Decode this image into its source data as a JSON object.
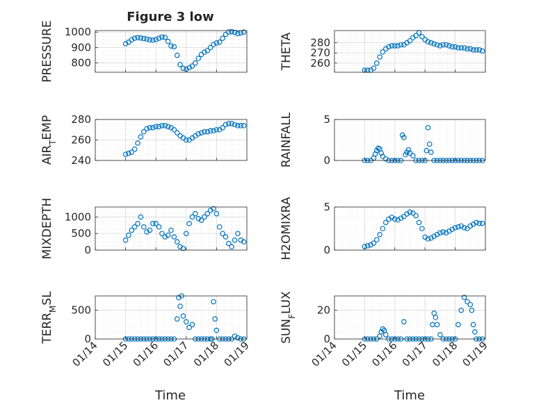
{
  "figure": {
    "title": "Figure 3 low",
    "xlabel": "Time"
  },
  "style": {
    "marker_color": "#0072BD",
    "axes_color": "#262626",
    "grid_color": "#d9d9d9"
  },
  "chart_data": [
    {
      "type": "scatter",
      "ylabel": "PRESSURE",
      "ylim": [
        740,
        1010
      ],
      "yticks": [
        800,
        900,
        1000
      ],
      "xticks": [
        "01/14",
        "01/15",
        "01/16",
        "01/17",
        "01/18",
        "01/19"
      ],
      "x": [
        15.0,
        15.1,
        15.2,
        15.3,
        15.4,
        15.5,
        15.6,
        15.7,
        15.8,
        15.9,
        16.0,
        16.1,
        16.2,
        16.3,
        16.4,
        16.5,
        16.6,
        16.7,
        16.8,
        16.9,
        17.0,
        17.1,
        17.2,
        17.3,
        17.4,
        17.5,
        17.6,
        17.7,
        17.8,
        17.9,
        18.0,
        18.1,
        18.2,
        18.3,
        18.4,
        18.5,
        18.6,
        18.7,
        18.8,
        18.9
      ],
      "y": [
        925,
        935,
        950,
        960,
        965,
        962,
        958,
        955,
        950,
        948,
        952,
        960,
        968,
        966,
        940,
        910,
        905,
        850,
        790,
        765,
        760,
        770,
        780,
        800,
        830,
        855,
        870,
        880,
        900,
        920,
        930,
        935,
        960,
        985,
        1000,
        1003,
        998,
        990,
        995,
        1000
      ]
    },
    {
      "type": "scatter",
      "ylabel": "THETA",
      "ylim": [
        251,
        292
      ],
      "yticks": [
        260,
        270,
        280
      ],
      "xticks": [
        "01/14",
        "01/15",
        "01/16",
        "01/17",
        "01/18",
        "01/19"
      ],
      "x": [
        15.0,
        15.1,
        15.2,
        15.3,
        15.4,
        15.5,
        15.6,
        15.7,
        15.8,
        15.9,
        16.0,
        16.1,
        16.2,
        16.3,
        16.4,
        16.5,
        16.6,
        16.7,
        16.8,
        16.9,
        17.0,
        17.1,
        17.2,
        17.3,
        17.4,
        17.5,
        17.6,
        17.7,
        17.8,
        17.9,
        18.0,
        18.1,
        18.2,
        18.3,
        18.4,
        18.5,
        18.6,
        18.7,
        18.8,
        18.9
      ],
      "y": [
        253,
        253,
        253,
        255,
        260,
        266,
        271,
        274,
        276,
        277,
        277,
        277,
        278,
        278,
        280,
        282,
        285,
        287,
        290,
        286,
        283,
        281,
        280,
        279,
        278,
        277,
        278,
        278,
        277,
        276,
        276,
        275,
        275,
        275,
        274,
        274,
        273,
        273,
        273,
        272
      ]
    },
    {
      "type": "scatter",
      "ylabel": "AIR_TEMP",
      "ylim": [
        240,
        280
      ],
      "yticks": [
        240,
        260,
        280
      ],
      "xticks": [
        "01/14",
        "01/15",
        "01/16",
        "01/17",
        "01/18",
        "01/19"
      ],
      "x": [
        15.0,
        15.1,
        15.2,
        15.3,
        15.4,
        15.5,
        15.6,
        15.7,
        15.8,
        15.9,
        16.0,
        16.1,
        16.2,
        16.3,
        16.4,
        16.5,
        16.6,
        16.7,
        16.8,
        16.9,
        17.0,
        17.1,
        17.2,
        17.3,
        17.4,
        17.5,
        17.6,
        17.7,
        17.8,
        17.9,
        18.0,
        18.1,
        18.2,
        18.3,
        18.4,
        18.5,
        18.6,
        18.7,
        18.8,
        18.9
      ],
      "y": [
        246,
        247,
        248,
        251,
        257,
        263,
        268,
        271,
        272,
        272,
        273,
        273,
        274,
        274,
        273,
        272,
        270,
        267,
        264,
        262,
        260,
        260,
        262,
        264,
        266,
        267,
        268,
        268,
        269,
        269,
        270,
        270,
        272,
        275,
        276,
        276,
        275,
        274,
        274,
        274
      ]
    },
    {
      "type": "scatter",
      "ylabel": "RAINFALL",
      "ylim": [
        0,
        5
      ],
      "yticks": [
        0,
        5
      ],
      "xticks": [
        "01/14",
        "01/15",
        "01/16",
        "01/17",
        "01/18",
        "01/19"
      ],
      "x": [
        15.0,
        15.1,
        15.2,
        15.3,
        15.35,
        15.4,
        15.45,
        15.5,
        15.55,
        15.6,
        15.7,
        15.8,
        15.9,
        16.0,
        16.1,
        16.2,
        16.25,
        16.3,
        16.35,
        16.4,
        16.45,
        16.5,
        16.6,
        16.7,
        16.8,
        16.9,
        17.0,
        17.05,
        17.1,
        17.15,
        17.2,
        17.3,
        17.4,
        17.5,
        17.6,
        17.7,
        17.8,
        17.9,
        18.0,
        18.1,
        18.2,
        18.3,
        18.4,
        18.5,
        18.6,
        18.7,
        18.8,
        18.9
      ],
      "y": [
        0,
        0,
        0,
        0.3,
        0.8,
        1.2,
        1.5,
        1.4,
        0.9,
        0.5,
        0.2,
        0,
        0,
        0,
        0,
        0,
        3.1,
        2.8,
        0.7,
        1.0,
        1.3,
        0.9,
        0.6,
        0,
        0,
        0,
        0,
        1.2,
        4.0,
        2.0,
        1.0,
        0,
        0,
        0,
        0,
        0,
        0,
        0,
        0,
        0,
        0,
        0,
        0,
        0,
        0,
        0,
        0,
        0
      ]
    },
    {
      "type": "scatter",
      "ylabel": "MIXDEPTH",
      "ylim": [
        0,
        1300
      ],
      "yticks": [
        0,
        500,
        1000
      ],
      "xticks": [
        "01/14",
        "01/15",
        "01/16",
        "01/17",
        "01/18",
        "01/19"
      ],
      "x": [
        15.0,
        15.1,
        15.2,
        15.3,
        15.4,
        15.5,
        15.6,
        15.7,
        15.8,
        15.9,
        16.0,
        16.1,
        16.2,
        16.3,
        16.4,
        16.5,
        16.6,
        16.7,
        16.8,
        16.9,
        17.0,
        17.1,
        17.2,
        17.3,
        17.4,
        17.5,
        17.6,
        17.7,
        17.8,
        17.9,
        18.0,
        18.1,
        18.2,
        18.3,
        18.4,
        18.5,
        18.6,
        18.7,
        18.8,
        18.9
      ],
      "y": [
        300,
        450,
        600,
        700,
        800,
        1000,
        700,
        550,
        600,
        800,
        800,
        700,
        500,
        400,
        450,
        600,
        400,
        250,
        100,
        50,
        500,
        800,
        1000,
        1100,
        950,
        900,
        1000,
        1100,
        1200,
        1250,
        1100,
        700,
        500,
        400,
        200,
        100,
        300,
        500,
        300,
        250
      ]
    },
    {
      "type": "scatter",
      "ylabel": "H2OMIXRA",
      "ylim": [
        0,
        5
      ],
      "yticks": [
        0,
        5
      ],
      "xticks": [
        "01/14",
        "01/15",
        "01/16",
        "01/17",
        "01/18",
        "01/19"
      ],
      "x": [
        15.0,
        15.1,
        15.2,
        15.3,
        15.4,
        15.5,
        15.6,
        15.7,
        15.8,
        15.9,
        16.0,
        16.1,
        16.2,
        16.3,
        16.4,
        16.5,
        16.6,
        16.7,
        16.8,
        16.9,
        17.0,
        17.1,
        17.2,
        17.3,
        17.4,
        17.5,
        17.6,
        17.7,
        17.8,
        17.9,
        18.0,
        18.1,
        18.2,
        18.3,
        18.4,
        18.5,
        18.6,
        18.7,
        18.8,
        18.9
      ],
      "y": [
        0.4,
        0.5,
        0.6,
        0.8,
        1.2,
        1.8,
        2.5,
        3.2,
        3.6,
        3.8,
        3.6,
        3.5,
        3.7,
        3.9,
        4.2,
        4.4,
        4.3,
        4.0,
        3.2,
        2.5,
        1.5,
        1.3,
        1.4,
        1.6,
        1.8,
        2.0,
        2.1,
        2.0,
        2.2,
        2.4,
        2.6,
        2.7,
        2.8,
        2.6,
        2.5,
        2.8,
        3.0,
        3.2,
        3.1,
        3.1
      ]
    },
    {
      "type": "scatter",
      "ylabel": "TERR_MSL",
      "ylim": [
        0,
        750
      ],
      "yticks": [
        0,
        500
      ],
      "xticks": [
        "01/14",
        "01/15",
        "01/16",
        "01/17",
        "01/18",
        "01/19"
      ],
      "x": [
        15.0,
        15.1,
        15.2,
        15.3,
        15.4,
        15.5,
        15.6,
        15.7,
        15.8,
        15.9,
        16.0,
        16.1,
        16.2,
        16.3,
        16.4,
        16.5,
        16.6,
        16.7,
        16.75,
        16.8,
        16.85,
        16.9,
        17.0,
        17.1,
        17.2,
        17.3,
        17.4,
        17.5,
        17.6,
        17.7,
        17.8,
        17.85,
        17.9,
        17.95,
        18.0,
        18.1,
        18.2,
        18.3,
        18.4,
        18.5,
        18.6,
        18.7,
        18.8,
        18.9
      ],
      "y": [
        0,
        0,
        0,
        0,
        0,
        0,
        0,
        0,
        0,
        0,
        0,
        0,
        0,
        0,
        0,
        0,
        0,
        350,
        720,
        570,
        750,
        400,
        300,
        200,
        250,
        0,
        0,
        0,
        0,
        0,
        0,
        0,
        650,
        350,
        150,
        0,
        0,
        0,
        0,
        0,
        50,
        20,
        0,
        0
      ]
    },
    {
      "type": "scatter",
      "ylabel": "SUN_FLUX",
      "ylim": [
        0,
        30
      ],
      "yticks": [
        0,
        20
      ],
      "xticks": [
        "01/14",
        "01/15",
        "01/16",
        "01/17",
        "01/18",
        "01/19"
      ],
      "x": [
        15.0,
        15.1,
        15.2,
        15.3,
        15.4,
        15.5,
        15.55,
        15.6,
        15.65,
        15.7,
        15.8,
        15.9,
        16.0,
        16.1,
        16.2,
        16.3,
        16.4,
        16.5,
        16.6,
        16.7,
        16.8,
        16.9,
        17.0,
        17.1,
        17.2,
        17.25,
        17.3,
        17.35,
        17.4,
        17.5,
        17.6,
        17.7,
        17.8,
        17.9,
        18.0,
        18.1,
        18.2,
        18.3,
        18.4,
        18.5,
        18.55,
        18.6,
        18.65,
        18.7,
        18.8,
        18.9
      ],
      "y": [
        0,
        0,
        0,
        0,
        0,
        2,
        5,
        7,
        6,
        3,
        0,
        0,
        0,
        0,
        0,
        12,
        0,
        0,
        0,
        0,
        0,
        0,
        0,
        0,
        0,
        10,
        18,
        15,
        10,
        3,
        0,
        0,
        0,
        0,
        0,
        10,
        20,
        29,
        26,
        24,
        20,
        10,
        5,
        0,
        0,
        0
      ]
    }
  ]
}
